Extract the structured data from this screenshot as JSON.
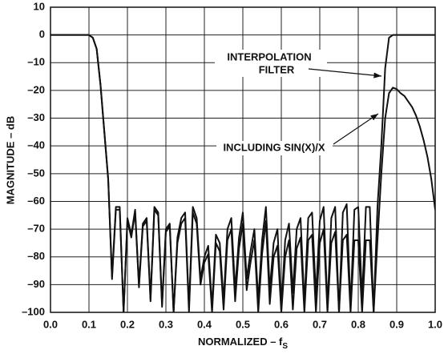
{
  "chart_data": {
    "type": "line",
    "xlabel": "NORMALIZED – f",
    "xlabel_subscript": "S",
    "ylabel": "MAGNITUDE – dB",
    "annotations": [
      "INTERPOLATION",
      "FILTER",
      "INCLUDING SIN(X)/X"
    ],
    "xlim": [
      0,
      1
    ],
    "ylim": [
      -100,
      10
    ],
    "xticks": [
      {
        "value": 0,
        "label": "0.0"
      },
      0.1,
      0.2,
      0.3,
      0.4,
      0.5,
      0.6,
      0.7,
      0.8,
      0.9,
      {
        "value": 1,
        "label": "1.0"
      }
    ],
    "yticks": [
      10,
      0,
      {
        "value": -10,
        "label": "–10"
      },
      {
        "value": -20,
        "label": "–20"
      },
      {
        "value": -30,
        "label": "–30"
      },
      {
        "value": -40,
        "label": "–40"
      },
      {
        "value": -50,
        "label": "–50"
      },
      {
        "value": -60,
        "label": "–60"
      },
      {
        "value": -70,
        "label": "–70"
      },
      {
        "value": -80,
        "label": "–80"
      },
      {
        "value": -90,
        "label": "–90"
      },
      {
        "value": -100,
        "label": "–100"
      }
    ],
    "grid": true,
    "x": [
      0,
      0.01,
      0.02,
      0.03,
      0.04,
      0.05,
      0.06,
      0.07,
      0.08,
      0.09,
      0.1,
      0.11,
      0.12,
      0.13,
      0.14,
      0.15,
      0.16,
      0.17,
      0.18,
      0.19,
      0.2,
      0.21,
      0.22,
      0.23,
      0.24,
      0.25,
      0.26,
      0.27,
      0.28,
      0.29,
      0.3,
      0.31,
      0.32,
      0.33,
      0.34,
      0.35,
      0.36,
      0.37,
      0.38,
      0.39,
      0.4,
      0.41,
      0.42,
      0.43,
      0.44,
      0.45,
      0.46,
      0.47,
      0.48,
      0.49,
      0.5,
      0.51,
      0.52,
      0.53,
      0.54,
      0.55,
      0.56,
      0.57,
      0.58,
      0.59,
      0.6,
      0.61,
      0.62,
      0.63,
      0.64,
      0.65,
      0.66,
      0.67,
      0.68,
      0.69,
      0.7,
      0.71,
      0.72,
      0.73,
      0.74,
      0.75,
      0.76,
      0.77,
      0.78,
      0.79,
      0.8,
      0.81,
      0.82,
      0.83,
      0.84,
      0.85,
      0.86,
      0.87,
      0.88,
      0.89,
      0.9,
      0.91,
      0.92,
      0.93,
      0.94,
      0.95,
      0.96,
      0.97,
      0.98,
      0.99,
      1
    ],
    "series": [
      {
        "color": "#111111",
        "values": [
          0,
          0,
          0,
          0,
          0,
          0,
          0,
          0,
          0,
          0,
          0,
          -1,
          -5,
          -18,
          -35,
          -52,
          -87,
          -62,
          -62,
          -100,
          -66,
          -72,
          -63,
          -90,
          -68,
          -66,
          -95,
          -62,
          -64,
          -97,
          -70,
          -68,
          -100,
          -73,
          -66,
          -64,
          -98,
          -62,
          -66,
          -88,
          -80,
          -76,
          -98,
          -72,
          -75,
          -96,
          -70,
          -66,
          -92,
          -73,
          -64,
          -88,
          -78,
          -70,
          -96,
          -74,
          -62,
          -92,
          -75,
          -70,
          -99,
          -74,
          -68,
          -93,
          -70,
          -66,
          -97,
          -66,
          -64,
          -94,
          -67,
          -62,
          -98,
          -66,
          -62,
          -100,
          -64,
          -61,
          -98,
          -63,
          -62,
          -95,
          -62,
          -62,
          -100,
          -62,
          -40,
          -12,
          -1,
          0,
          0,
          0,
          0,
          0,
          0,
          0,
          0,
          0,
          0,
          0,
          0
        ]
      },
      {
        "color": "#111111",
        "values": [
          0,
          0,
          0,
          0,
          0,
          0,
          0,
          0,
          0,
          0,
          0,
          -1,
          -5,
          -18,
          -35,
          -52,
          -88,
          -63,
          -63,
          -100,
          -67,
          -73,
          -64,
          -91,
          -69,
          -67,
          -96,
          -63,
          -65,
          -98,
          -71,
          -69,
          -100,
          -75,
          -68,
          -66,
          -100,
          -64,
          -68,
          -90,
          -82,
          -79,
          -100,
          -75,
          -78,
          -99,
          -74,
          -70,
          -96,
          -77,
          -68,
          -92,
          -82,
          -74,
          -100,
          -79,
          -67,
          -97,
          -80,
          -76,
          -100,
          -80,
          -74,
          -99,
          -77,
          -73,
          -100,
          -74,
          -72,
          -100,
          -75,
          -70,
          -100,
          -75,
          -71,
          -100,
          -74,
          -72,
          -100,
          -74,
          -74,
          -100,
          -74,
          -74,
          -100,
          -74,
          -50,
          -30,
          -21,
          -19,
          -19.5,
          -21,
          -22,
          -24,
          -26,
          -29,
          -33,
          -38,
          -44,
          -52,
          -63
        ]
      }
    ]
  }
}
